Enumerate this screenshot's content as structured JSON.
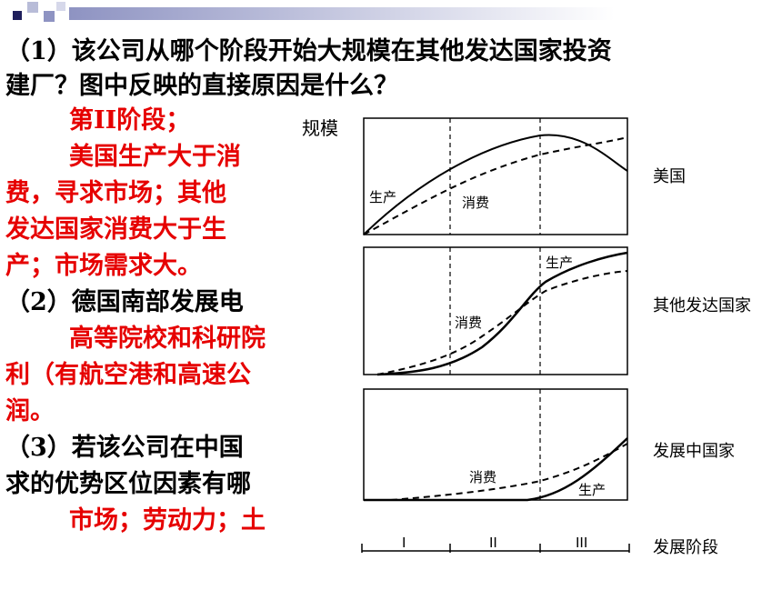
{
  "question1": {
    "line1": "（1）该公司从哪个阶段开始大规模在其他发达国家投资",
    "line2": "建厂？图中反映的直接原因是什么？"
  },
  "answer1": {
    "line1": "第II阶段；",
    "line2": "美国生产大于消",
    "line3": "费，寻求市场；其他",
    "line4": "发达国家消费大于生",
    "line5": "产；市场需求大。"
  },
  "question2": {
    "line1": "（2）德国南部发展电"
  },
  "answer2": {
    "line1": "高等院校和科研院",
    "line2": "利（有航空港和高速公",
    "line3": "润。"
  },
  "question3": {
    "line1": "（3）若该公司在中国",
    "line2": "求的优势区位因素有哪"
  },
  "answer3": {
    "line1": "市场；劳动力；土"
  },
  "chart": {
    "ylabel": "规模",
    "panels": [
      {
        "name": "美国",
        "production_label": "生产",
        "consumption_label": "消费"
      },
      {
        "name": "其他发达国家",
        "production_label": "生产",
        "consumption_label": "消费"
      },
      {
        "name": "发展中国家",
        "production_label": "生产",
        "consumption_label": "消费"
      }
    ],
    "stages": [
      "I",
      "II",
      "III"
    ],
    "stage_axis_label": "发展阶段"
  },
  "colors": {
    "red_text": "#e60000",
    "deco_navy": "#1f1f5c"
  }
}
